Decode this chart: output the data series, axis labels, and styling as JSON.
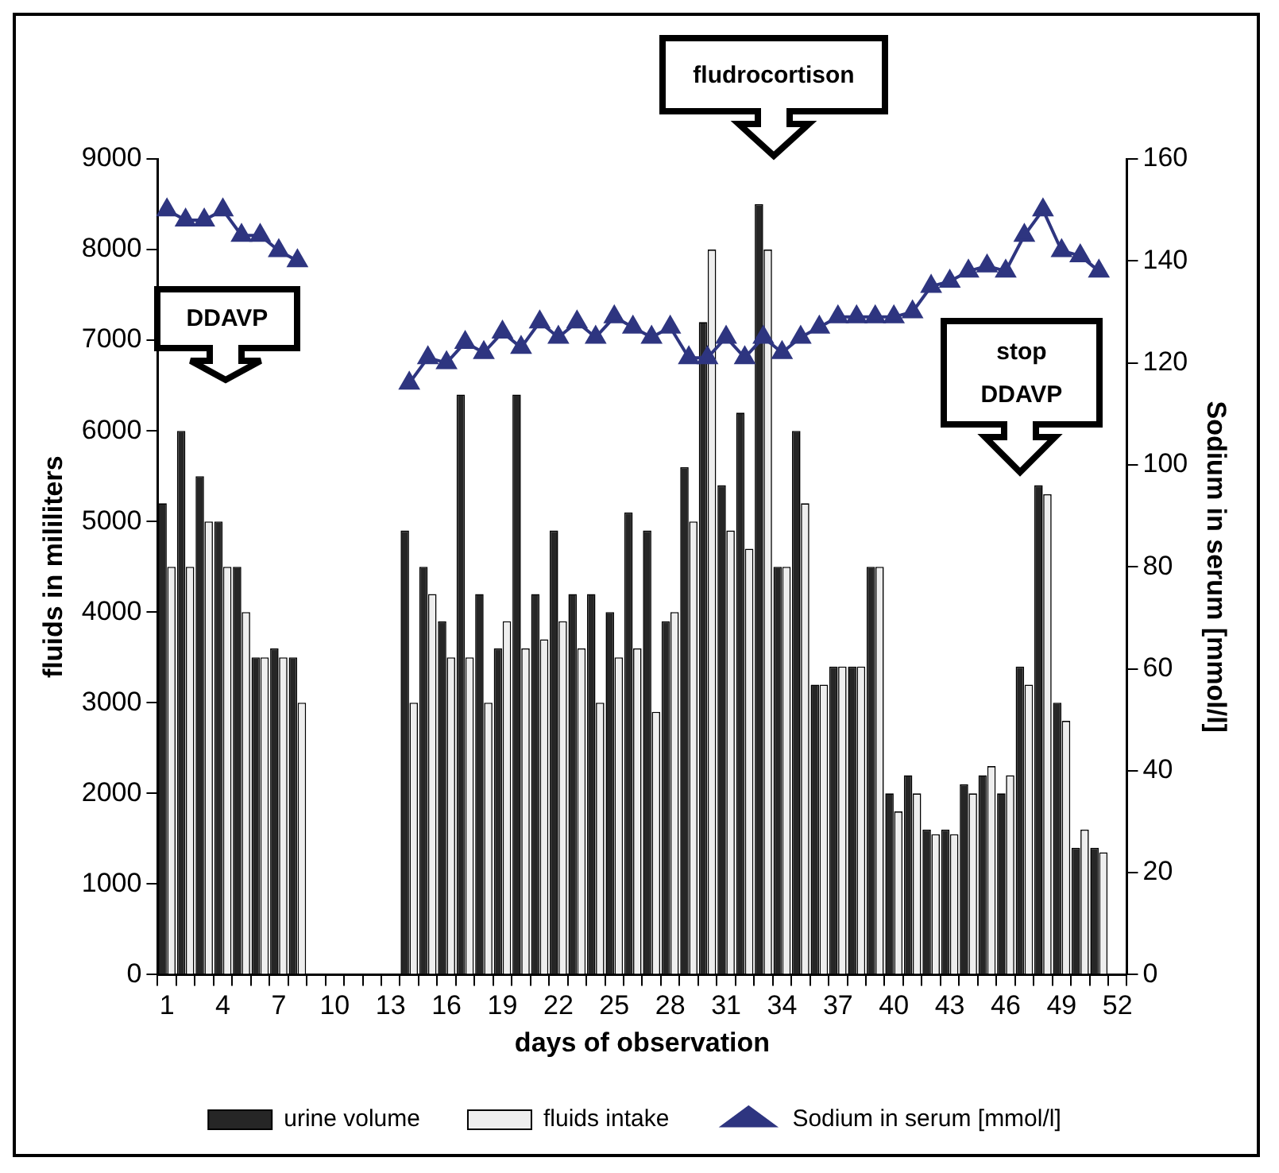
{
  "chart_data": {
    "type": "bar",
    "categories": [
      "1",
      null,
      null,
      "4",
      null,
      null,
      "7",
      null,
      null,
      "10",
      null,
      null,
      "13",
      null,
      null,
      "16",
      null,
      null,
      "19",
      null,
      null,
      "22",
      null,
      null,
      "25",
      null,
      null,
      "28",
      null,
      null,
      "31",
      null,
      null,
      "34",
      null,
      null,
      "37",
      null,
      null,
      "40",
      null,
      null,
      "43",
      null,
      null,
      "46",
      null,
      null,
      "49",
      null,
      null,
      "52"
    ],
    "xlabel": "days of observation",
    "ylabel": "fluids in mililiters",
    "y2label": "Sodium in serum [mmol/l]",
    "series": [
      {
        "name": "urine volume",
        "color": "#262626",
        "values": [
          5200,
          6000,
          5500,
          5000,
          4500,
          3500,
          3600,
          3500,
          null,
          null,
          null,
          null,
          null,
          4900,
          4500,
          3900,
          6400,
          4200,
          3600,
          6400,
          4200,
          4900,
          4200,
          4200,
          4000,
          5100,
          4900,
          3900,
          5600,
          7200,
          5400,
          6200,
          8500,
          4500,
          6000,
          3200,
          3400,
          3400,
          4500,
          2000,
          2200,
          1600,
          1600,
          2100,
          2200,
          2000,
          3400,
          5400,
          3000,
          1400,
          1400,
          null
        ]
      },
      {
        "name": "fluids intake",
        "color": "#eeeeee",
        "values": [
          4500,
          4500,
          5000,
          4500,
          4000,
          3500,
          3500,
          3000,
          null,
          null,
          null,
          null,
          null,
          3000,
          4200,
          3500,
          3500,
          3000,
          3900,
          3600,
          3700,
          3900,
          3600,
          3000,
          3500,
          3600,
          2900,
          4000,
          5000,
          8000,
          4900,
          4700,
          8000,
          4500,
          5200,
          3200,
          3400,
          3400,
          4500,
          1800,
          2000,
          1550,
          1550,
          2000,
          2300,
          2200,
          3200,
          5300,
          2800,
          1600,
          1350,
          null
        ]
      },
      {
        "name": "Sodium in serum [mmol/l]",
        "type": "line",
        "axis": "y2",
        "color": "#2e3580",
        "marker": "triangle",
        "values": [
          150,
          148,
          148,
          150,
          145,
          145,
          142,
          140,
          null,
          null,
          null,
          null,
          null,
          116,
          121,
          120,
          124,
          122,
          126,
          123,
          128,
          125,
          128,
          125,
          129,
          127,
          125,
          127,
          121,
          121,
          125,
          121,
          125,
          122,
          125,
          127,
          129,
          129,
          129,
          129,
          130,
          135,
          136,
          138,
          139,
          138,
          145,
          150,
          142,
          141,
          138,
          null
        ]
      }
    ],
    "ylim": [
      0,
      9000
    ],
    "yticks": [
      0,
      1000,
      2000,
      3000,
      4000,
      5000,
      6000,
      7000,
      8000,
      9000
    ],
    "y2lim": [
      0,
      160
    ],
    "y2ticks": [
      0,
      20,
      40,
      60,
      80,
      100,
      120,
      140,
      160
    ],
    "legend": "bottom",
    "annotations": [
      "DDAVP",
      "fludrocortison",
      "stop DDAVP"
    ]
  }
}
